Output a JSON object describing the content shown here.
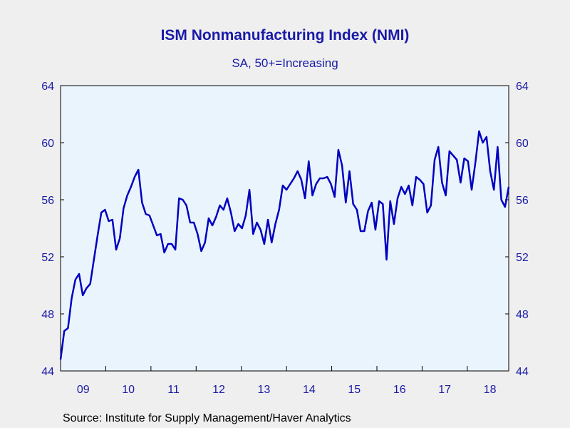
{
  "chart_data": {
    "type": "line",
    "title": "ISM Nonmanufacturing Index (NMI)",
    "subtitle": "SA, 50+=Increasing",
    "source": "Source:  Institute for Supply Management/Haver Analytics",
    "ylim": [
      44,
      64
    ],
    "yticks": [
      44,
      48,
      52,
      56,
      60,
      64
    ],
    "xticks": [
      {
        "year": 2009,
        "label": "09"
      },
      {
        "year": 2010,
        "label": "10"
      },
      {
        "year": 2011,
        "label": "11"
      },
      {
        "year": 2012,
        "label": "12"
      },
      {
        "year": 2013,
        "label": "13"
      },
      {
        "year": 2014,
        "label": "14"
      },
      {
        "year": 2015,
        "label": "15"
      },
      {
        "year": 2016,
        "label": "16"
      },
      {
        "year": 2017,
        "label": "17"
      },
      {
        "year": 2018,
        "label": "18"
      }
    ],
    "x_start": "2009-01",
    "x_end": "2018-12",
    "line_color": "#0000c0",
    "plot_bg": "#eaf4fc",
    "axis_color": "#1a1aa8",
    "series": [
      {
        "values": [
          44.8,
          46.8,
          47.0,
          49.1,
          50.4,
          50.8,
          49.3,
          49.8,
          50.1,
          51.8,
          53.5,
          55.1,
          55.3,
          54.5,
          54.6,
          52.5,
          53.3,
          55.4,
          56.3,
          56.9,
          57.6,
          58.1,
          55.8,
          55.0,
          54.9,
          54.2,
          53.5,
          53.6,
          52.3,
          52.9,
          52.9,
          52.5,
          56.1,
          56.0,
          55.6,
          54.4,
          54.4,
          53.6,
          52.4,
          53.0,
          54.7,
          54.2,
          54.8,
          55.6,
          55.3,
          56.1,
          55.1,
          53.8,
          54.3,
          54.0,
          54.9,
          56.7,
          53.6,
          54.4,
          53.9,
          52.9,
          54.6,
          53.0,
          54.3,
          55.3,
          57.0,
          56.7,
          57.1,
          57.5,
          58.0,
          57.4,
          56.1,
          58.7,
          56.3,
          57.1,
          57.5,
          57.5,
          57.6,
          57.1,
          56.2,
          59.5,
          58.4,
          55.8,
          58.0,
          55.7,
          55.3,
          53.8,
          53.8,
          55.2,
          55.8,
          53.9,
          55.9,
          55.7,
          51.8,
          55.9,
          54.3,
          56.1,
          56.9,
          56.4,
          57.0,
          55.6,
          57.6,
          57.4,
          57.1,
          55.1,
          55.6,
          58.8,
          59.7,
          57.2,
          56.3,
          59.4,
          59.1,
          58.8,
          57.2,
          58.9,
          58.7,
          56.7,
          58.6,
          60.8,
          60.0,
          60.4,
          58.0,
          56.7,
          59.7,
          56.0,
          55.5,
          56.9
        ]
      }
    ]
  }
}
